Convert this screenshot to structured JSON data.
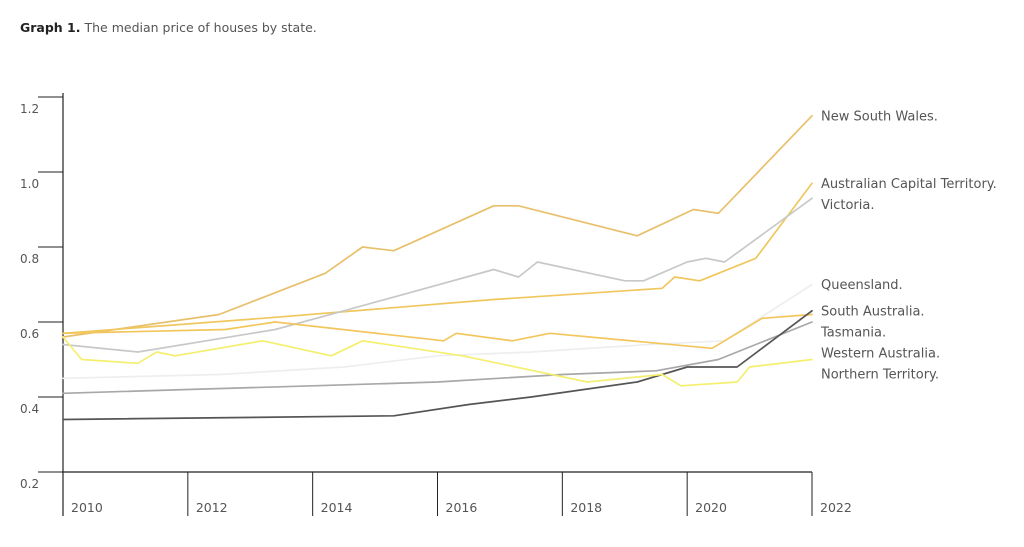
{
  "caption": {
    "label": "Graph 1.",
    "text": "The median price of houses by state."
  },
  "chart_data": {
    "type": "line",
    "title": "The median price of houses by state.",
    "xlabel": "",
    "ylabel": "",
    "xlim": [
      2010,
      2022
    ],
    "ylim": [
      0.2,
      1.2
    ],
    "x_ticks": [
      "2010",
      "2012",
      "2014",
      "2016",
      "2018",
      "2020",
      "2022"
    ],
    "y_ticks": [
      "1.2",
      "1.0",
      "0.8",
      "0.6",
      "0.4",
      "0.2"
    ],
    "grid": false,
    "legend": "right, labels at line ends",
    "series": [
      {
        "name": "New South Wales.",
        "color": "#e8c06c",
        "points": [
          [
            2010,
            0.56
          ],
          [
            2012.5,
            0.62
          ],
          [
            2014.2,
            0.73
          ],
          [
            2014.8,
            0.8
          ],
          [
            2015.3,
            0.79
          ],
          [
            2016.9,
            0.91
          ],
          [
            2017.3,
            0.91
          ],
          [
            2019.2,
            0.83
          ],
          [
            2020.1,
            0.9
          ],
          [
            2020.5,
            0.89
          ],
          [
            2022,
            1.15
          ]
        ]
      },
      {
        "name": "Australian Capital Territory.",
        "color": "#f0c75e",
        "points": [
          [
            2010,
            0.57
          ],
          [
            2013.2,
            0.61
          ],
          [
            2016.9,
            0.66
          ],
          [
            2019.6,
            0.69
          ],
          [
            2019.8,
            0.72
          ],
          [
            2020.2,
            0.71
          ],
          [
            2021.1,
            0.77
          ],
          [
            2022,
            0.97
          ]
        ]
      },
      {
        "name": "Victoria.",
        "color": "#c8c8c8",
        "points": [
          [
            2010,
            0.54
          ],
          [
            2011.2,
            0.52
          ],
          [
            2013.4,
            0.58
          ],
          [
            2014.5,
            0.63
          ],
          [
            2016.9,
            0.74
          ],
          [
            2017.3,
            0.72
          ],
          [
            2017.6,
            0.76
          ],
          [
            2019,
            0.71
          ],
          [
            2019.3,
            0.71
          ],
          [
            2020.0,
            0.76
          ],
          [
            2020.3,
            0.77
          ],
          [
            2020.6,
            0.76
          ],
          [
            2022,
            0.93
          ]
        ]
      },
      {
        "name": "Queensland.",
        "color": "#eeeeee",
        "points": [
          [
            2010,
            0.45
          ],
          [
            2012.5,
            0.46
          ],
          [
            2014.5,
            0.48
          ],
          [
            2016,
            0.51
          ],
          [
            2017.5,
            0.52
          ],
          [
            2019.4,
            0.54
          ],
          [
            2020.6,
            0.55
          ],
          [
            2022,
            0.7
          ]
        ]
      },
      {
        "name": "Tasmania.",
        "color": "#f2c65c",
        "points": [
          [
            2010,
            0.57
          ],
          [
            2012.6,
            0.58
          ],
          [
            2013.4,
            0.6
          ],
          [
            2016.1,
            0.55
          ],
          [
            2016.3,
            0.57
          ],
          [
            2017.2,
            0.55
          ],
          [
            2017.8,
            0.57
          ],
          [
            2020.4,
            0.53
          ],
          [
            2021.2,
            0.61
          ],
          [
            2022,
            0.62
          ]
        ]
      },
      {
        "name": "Western Australia.",
        "color": "#a8a8a8",
        "points": [
          [
            2010,
            0.41
          ],
          [
            2012,
            0.42
          ],
          [
            2014,
            0.43
          ],
          [
            2016,
            0.44
          ],
          [
            2018,
            0.46
          ],
          [
            2019.5,
            0.47
          ],
          [
            2020.5,
            0.5
          ],
          [
            2022,
            0.6
          ]
        ]
      },
      {
        "name": "South Australia.",
        "color": "#555555",
        "points": [
          [
            2010,
            0.34
          ],
          [
            2015.3,
            0.35
          ],
          [
            2016.5,
            0.38
          ],
          [
            2017.5,
            0.4
          ],
          [
            2019.2,
            0.44
          ],
          [
            2020.0,
            0.48
          ],
          [
            2020.8,
            0.48
          ],
          [
            2022,
            0.63
          ]
        ]
      },
      {
        "name": "Northern Territory.",
        "color": "#f4ef6e",
        "points": [
          [
            2010,
            0.56
          ],
          [
            2010.3,
            0.5
          ],
          [
            2011.2,
            0.49
          ],
          [
            2011.5,
            0.52
          ],
          [
            2011.8,
            0.51
          ],
          [
            2013.2,
            0.55
          ],
          [
            2014.3,
            0.51
          ],
          [
            2014.8,
            0.55
          ],
          [
            2016.4,
            0.51
          ],
          [
            2018.4,
            0.44
          ],
          [
            2019.6,
            0.46
          ],
          [
            2019.9,
            0.43
          ],
          [
            2020.8,
            0.44
          ],
          [
            2021.0,
            0.48
          ],
          [
            2022,
            0.5
          ]
        ]
      }
    ]
  }
}
